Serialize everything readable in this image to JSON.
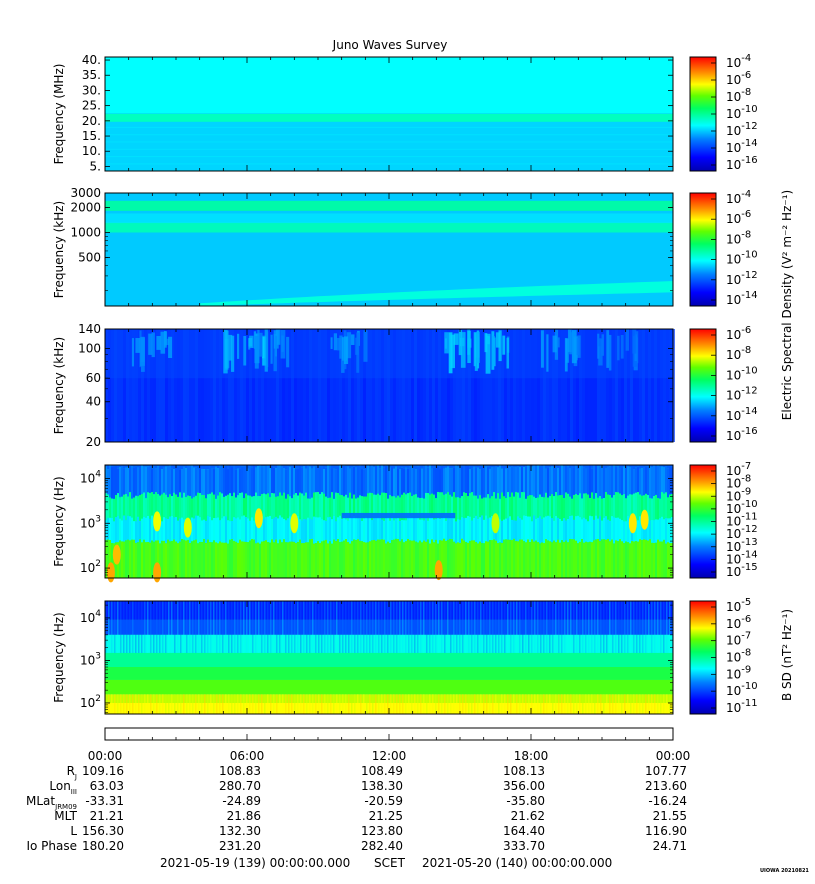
{
  "title": "Juno Waves Survey",
  "footer": {
    "start": "2021-05-19 (139) 00:00:00.000",
    "scet": "SCET",
    "end": "2021-05-20 (140) 00:00:00.000",
    "stamp": "UIOWA 20210821"
  },
  "colors": {
    "scale": [
      "#0000c0",
      "#0000ff",
      "#0060ff",
      "#00c0ff",
      "#00ffe0",
      "#00ff80",
      "#00e000",
      "#a0ff00",
      "#ffff00",
      "#ffa000",
      "#ff4000",
      "#ff0000"
    ]
  },
  "colorbars": [
    {
      "id": "cb1",
      "labels": [
        {
          "b": "10",
          "e": "-4"
        },
        {
          "b": "10",
          "e": "-6"
        },
        {
          "b": "10",
          "e": "-8"
        },
        {
          "b": "10",
          "e": "-10"
        },
        {
          "b": "10",
          "e": "-12"
        },
        {
          "b": "10",
          "e": "-14"
        },
        {
          "b": "10",
          "e": "-16"
        }
      ]
    },
    {
      "id": "cb2",
      "labels": [
        {
          "b": "10",
          "e": "-4"
        },
        {
          "b": "10",
          "e": "-6"
        },
        {
          "b": "10",
          "e": "-8"
        },
        {
          "b": "10",
          "e": "-10"
        },
        {
          "b": "10",
          "e": "-12"
        },
        {
          "b": "10",
          "e": "-14"
        }
      ]
    },
    {
      "id": "cb3",
      "labels": [
        {
          "b": "10",
          "e": "-6"
        },
        {
          "b": "10",
          "e": "-8"
        },
        {
          "b": "10",
          "e": "-10"
        },
        {
          "b": "10",
          "e": "-12"
        },
        {
          "b": "10",
          "e": "-14"
        },
        {
          "b": "10",
          "e": "-16"
        }
      ]
    },
    {
      "id": "cb4",
      "labels": [
        {
          "b": "10",
          "e": "-7"
        },
        {
          "b": "10",
          "e": "-8"
        },
        {
          "b": "10",
          "e": "-9"
        },
        {
          "b": "10",
          "e": "-10"
        },
        {
          "b": "10",
          "e": "-11"
        },
        {
          "b": "10",
          "e": "-12"
        },
        {
          "b": "10",
          "e": "-13"
        },
        {
          "b": "10",
          "e": "-14"
        },
        {
          "b": "10",
          "e": "-15"
        }
      ]
    },
    {
      "id": "cb5",
      "labels": [
        {
          "b": "10",
          "e": "-5"
        },
        {
          "b": "10",
          "e": "-6"
        },
        {
          "b": "10",
          "e": "-7"
        },
        {
          "b": "10",
          "e": "-8"
        },
        {
          "b": "10",
          "e": "-9"
        },
        {
          "b": "10",
          "e": "-10"
        },
        {
          "b": "10",
          "e": "-11"
        }
      ]
    }
  ],
  "colorbar_titles": {
    "electric": "Electric Spectral Density (V² m⁻² Hz⁻¹)",
    "magnetic": "B SD (nT² Hz⁻¹)"
  },
  "ephemeris": {
    "times": [
      "00:00",
      "06:00",
      "12:00",
      "18:00",
      "00:00"
    ],
    "rows": [
      {
        "label": "R",
        "sub": "J",
        "values": [
          "109.16",
          "108.83",
          "108.49",
          "108.13",
          "107.77"
        ]
      },
      {
        "label": "Lon",
        "sub": "III",
        "values": [
          "63.03",
          "280.70",
          "138.30",
          "356.00",
          "213.60"
        ]
      },
      {
        "label": "MLat",
        "sub": "JRM09",
        "values": [
          "-33.31",
          "-24.89",
          "-20.59",
          "-35.80",
          "-16.24"
        ]
      },
      {
        "label": "MLT",
        "sub": "",
        "values": [
          "21.21",
          "21.86",
          "21.25",
          "21.62",
          "21.55"
        ]
      },
      {
        "label": "L",
        "sub": "",
        "values": [
          "156.30",
          "132.30",
          "123.80",
          "164.40",
          "116.90"
        ]
      },
      {
        "label": "Io Phase",
        "sub": "",
        "values": [
          "180.20",
          "231.20",
          "282.40",
          "333.70",
          "24.71"
        ]
      }
    ]
  },
  "chart_data": [
    {
      "type": "heatmap",
      "ylabel": "Frequency (MHz)",
      "yscale": "linear",
      "ylim": [
        3.5,
        41
      ],
      "ytick_labels": [
        "5.",
        "10.",
        "15.",
        "20.",
        "25.",
        "30.",
        "35.",
        "40."
      ],
      "ytick_values": [
        5,
        10,
        15,
        20,
        25,
        30,
        35,
        40
      ],
      "xlim_hours": [
        0,
        24
      ],
      "bands": [
        {
          "f": 21,
          "level": 0.42
        }
      ],
      "background": 0.36,
      "upper_background": 0.4
    },
    {
      "type": "heatmap",
      "ylabel": "Frequency (kHz)",
      "yscale": "log",
      "ylim": [
        130,
        3000
      ],
      "ytick_labels": [
        "3000",
        "2000",
        "1000",
        "500"
      ],
      "ytick_values": [
        3000,
        2000,
        1000,
        500
      ],
      "xlim_hours": [
        0,
        24
      ],
      "bands": [
        {
          "f": 2100,
          "level": 0.44
        },
        {
          "f": 1150,
          "level": 0.42
        },
        {
          "f": 220,
          "level": 0.4
        }
      ],
      "background": 0.35
    },
    {
      "type": "heatmap",
      "ylabel": "Frequency (kHz)",
      "yscale": "log",
      "ylim": [
        20,
        140
      ],
      "ytick_labels": [
        "140",
        "100",
        "60",
        "40",
        "20"
      ],
      "ytick_values": [
        140,
        100,
        60,
        40,
        20
      ],
      "xlim_hours": [
        0,
        24
      ],
      "background": 0.18,
      "bursts_hours": [
        1.5,
        5.5,
        6.5,
        9.8,
        14.8,
        15.8,
        18.8,
        21.3
      ],
      "bursts_intensity": [
        0.26,
        0.3,
        0.28,
        0.26,
        0.32,
        0.3,
        0.27,
        0.25
      ]
    },
    {
      "type": "heatmap",
      "ylabel": "Frequency (Hz)",
      "yscale": "log",
      "ylim": [
        60,
        20000
      ],
      "ytick_labels": [
        "10",
        "10",
        "10"
      ],
      "ytick_exponents": [
        "4",
        "3",
        "2"
      ],
      "ytick_values": [
        10000,
        1000,
        100
      ],
      "xlim_hours": [
        0,
        24
      ],
      "background": 0.5
    },
    {
      "type": "heatmap",
      "ylabel": "Frequency (Hz)",
      "yscale": "log",
      "ylim": [
        55,
        25000
      ],
      "ytick_labels": [
        "10",
        "10",
        "10"
      ],
      "ytick_exponents": [
        "4",
        "3",
        "2"
      ],
      "ytick_values": [
        10000,
        1000,
        100
      ],
      "xlim_hours": [
        0,
        24
      ],
      "background": 0.5
    }
  ]
}
